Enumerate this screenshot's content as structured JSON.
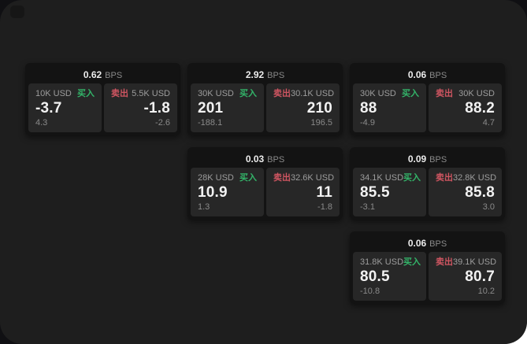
{
  "app": {
    "bps_suffix": "BPS",
    "buy_label": "买入",
    "sell_label": "卖出"
  },
  "colors": {
    "page_bg": "#ffffff",
    "backdrop_bg": "#101013",
    "panel_bg": "#1e1e1e",
    "card_bg": "#131313",
    "tile_bg": "#272727",
    "accent_buy": "#33b469",
    "accent_sell": "#cf5561"
  },
  "cards": [
    {
      "bps": "0.62",
      "col": 0,
      "row": 0,
      "buy": {
        "amount": "10K USD",
        "value": "-3.7",
        "sub": "4.3"
      },
      "sell": {
        "amount": "5.5K USD",
        "value": "-1.8",
        "sub": "-2.6"
      }
    },
    {
      "bps": "2.92",
      "col": 1,
      "row": 0,
      "buy": {
        "amount": "30K USD",
        "value": "201",
        "sub": "-188.1"
      },
      "sell": {
        "amount": "30.1K USD",
        "value": "210",
        "sub": "196.5"
      }
    },
    {
      "bps": "0.06",
      "col": 2,
      "row": 0,
      "buy": {
        "amount": "30K USD",
        "value": "88",
        "sub": "-4.9"
      },
      "sell": {
        "amount": "30K USD",
        "value": "88.2",
        "sub": "4.7"
      }
    },
    {
      "bps": "0.03",
      "col": 1,
      "row": 1,
      "buy": {
        "amount": "28K USD",
        "value": "10.9",
        "sub": "1.3"
      },
      "sell": {
        "amount": "32.6K USD",
        "value": "11",
        "sub": "-1.8"
      }
    },
    {
      "bps": "0.09",
      "col": 2,
      "row": 1,
      "buy": {
        "amount": "34.1K USD",
        "value": "85.5",
        "sub": "-3.1"
      },
      "sell": {
        "amount": "32.8K USD",
        "value": "85.8",
        "sub": "3.0"
      }
    },
    {
      "bps": "0.06",
      "col": 2,
      "row": 2,
      "buy": {
        "amount": "31.8K USD",
        "value": "80.5",
        "sub": "-10.8"
      },
      "sell": {
        "amount": "39.1K USD",
        "value": "80.7",
        "sub": "10.2"
      }
    }
  ]
}
